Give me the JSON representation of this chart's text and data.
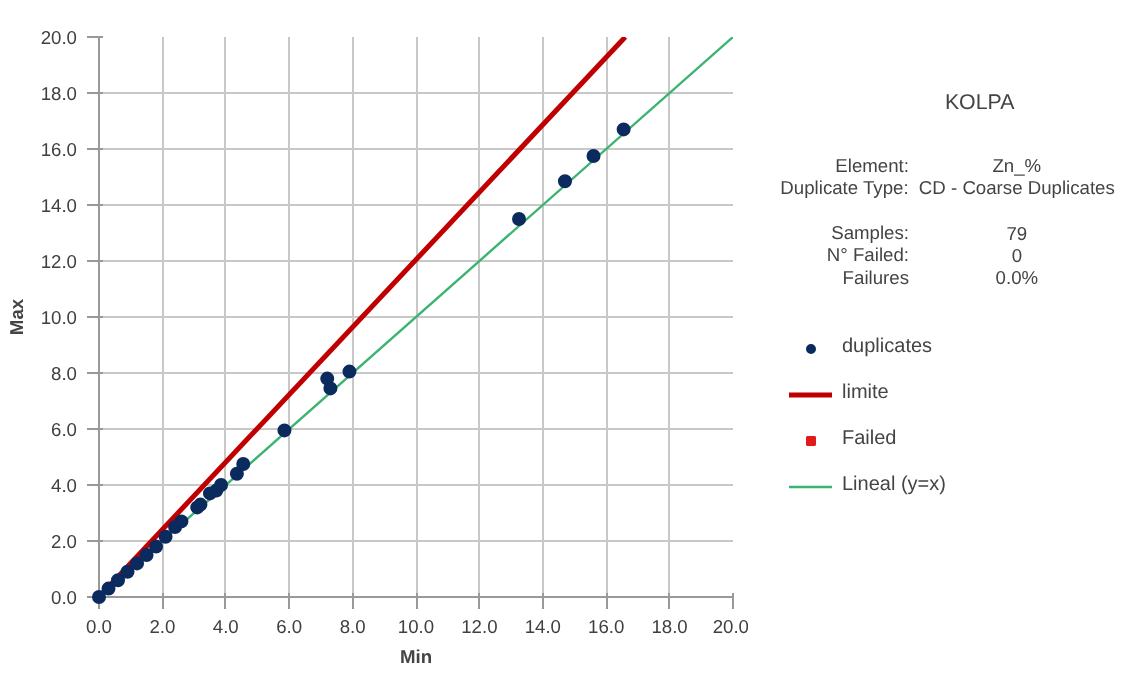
{
  "chart_data": {
    "type": "scatter",
    "title": "KOLPA",
    "xlabel": "Min",
    "ylabel": "Max",
    "xlim": [
      0,
      20
    ],
    "ylim": [
      0,
      20
    ],
    "xticks": [
      {
        "value": 0,
        "label": "0.0"
      },
      {
        "value": 2,
        "label": "2.0"
      },
      {
        "value": 4,
        "label": "4.0"
      },
      {
        "value": 6,
        "label": "6.0"
      },
      {
        "value": 8,
        "label": "8.0"
      },
      {
        "value": 10,
        "label": "10.0"
      },
      {
        "value": 12,
        "label": "12.0"
      },
      {
        "value": 14,
        "label": "14.0"
      },
      {
        "value": 16,
        "label": "16.0"
      },
      {
        "value": 18,
        "label": "18.0"
      },
      {
        "value": 20,
        "label": "20.0"
      }
    ],
    "yticks": [
      {
        "value": 0,
        "label": "0.0"
      },
      {
        "value": 2,
        "label": "2.0"
      },
      {
        "value": 4,
        "label": "4.0"
      },
      {
        "value": 6,
        "label": "6.0"
      },
      {
        "value": 8,
        "label": "8.0"
      },
      {
        "value": 10,
        "label": "10.0"
      },
      {
        "value": 12,
        "label": "12.0"
      },
      {
        "value": 14,
        "label": "14.0"
      },
      {
        "value": 16,
        "label": "16.0"
      },
      {
        "value": 18,
        "label": "18.0"
      },
      {
        "value": 20,
        "label": "20.0"
      }
    ],
    "grid": true,
    "legend": "right",
    "annotations": [
      "Element:",
      "Zn_%",
      "Duplicate Type:",
      "CD - Coarse Duplicates",
      "Samples:",
      "79",
      "N° Failed:",
      "0",
      "Failures",
      "0.0%"
    ],
    "series": [
      {
        "name": "duplicates",
        "marker": "circle",
        "color": "#0b2a5e",
        "x": [
          0.0,
          0.3,
          0.6,
          0.9,
          1.2,
          1.5,
          1.8,
          2.1,
          2.4,
          2.6,
          3.1,
          3.2,
          3.5,
          3.7,
          3.85,
          4.35,
          4.55,
          5.85,
          7.2,
          7.3,
          7.9,
          13.25,
          14.7,
          15.6,
          16.55
        ],
        "values": [
          0.0,
          0.3,
          0.6,
          0.9,
          1.2,
          1.5,
          1.8,
          2.15,
          2.5,
          2.7,
          3.2,
          3.3,
          3.7,
          3.8,
          4.0,
          4.4,
          4.75,
          5.95,
          7.8,
          7.45,
          8.05,
          13.5,
          14.85,
          15.75,
          16.7
        ]
      },
      {
        "name": "limite",
        "type": "line",
        "color": "#c00000",
        "x": [
          0,
          16.6
        ],
        "values": [
          0,
          20
        ]
      },
      {
        "name": "Failed",
        "marker": "square",
        "color": "#e31a1c"
      },
      {
        "name": "Lineal (y=x)",
        "type": "line",
        "color": "#3cb371",
        "x": [
          0,
          20
        ],
        "values": [
          0,
          20
        ]
      }
    ]
  }
}
